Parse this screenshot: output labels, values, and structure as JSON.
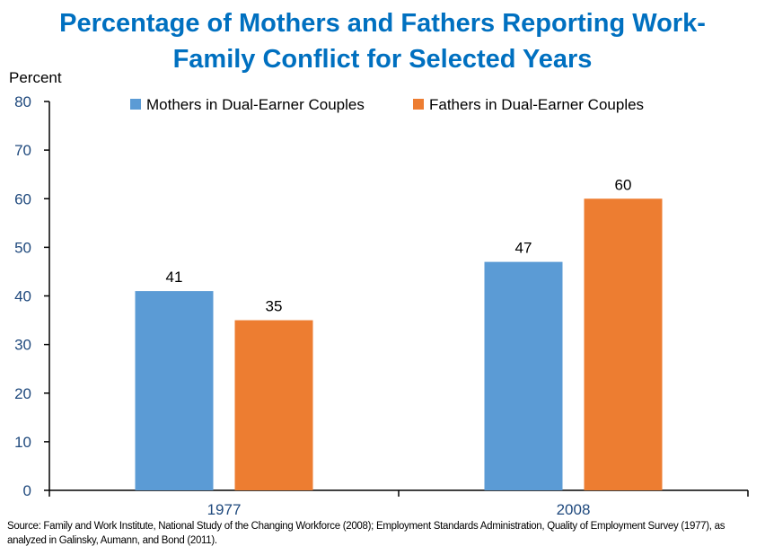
{
  "chart_data": {
    "type": "bar",
    "title_line1": "Percentage of Mothers and Fathers Reporting Work-",
    "title_line2": "Family Conflict for Selected Years",
    "ylabel": "Percent",
    "xlabel": "",
    "ylim": [
      0,
      80
    ],
    "yticks": [
      0,
      10,
      20,
      30,
      40,
      50,
      60,
      70,
      80
    ],
    "categories": [
      "1977",
      "2008"
    ],
    "series": [
      {
        "name": "Mothers in Dual-Earner Couples",
        "color": "#5B9BD5",
        "values": [
          41,
          47
        ]
      },
      {
        "name": "Fathers in Dual-Earner Couples",
        "color": "#ED7D31",
        "values": [
          35,
          60
        ]
      }
    ],
    "legend_position": "top",
    "grid": false,
    "axis_label_color": "#1F497D",
    "title_color": "#0070C0"
  },
  "source": "Source: Family and Work Institute, National Study of the Changing Workforce (2008); Employment Standards Administration, Quality of Employment Survey (1977), as analyzed in Galinsky, Aumann, and Bond (2011)."
}
